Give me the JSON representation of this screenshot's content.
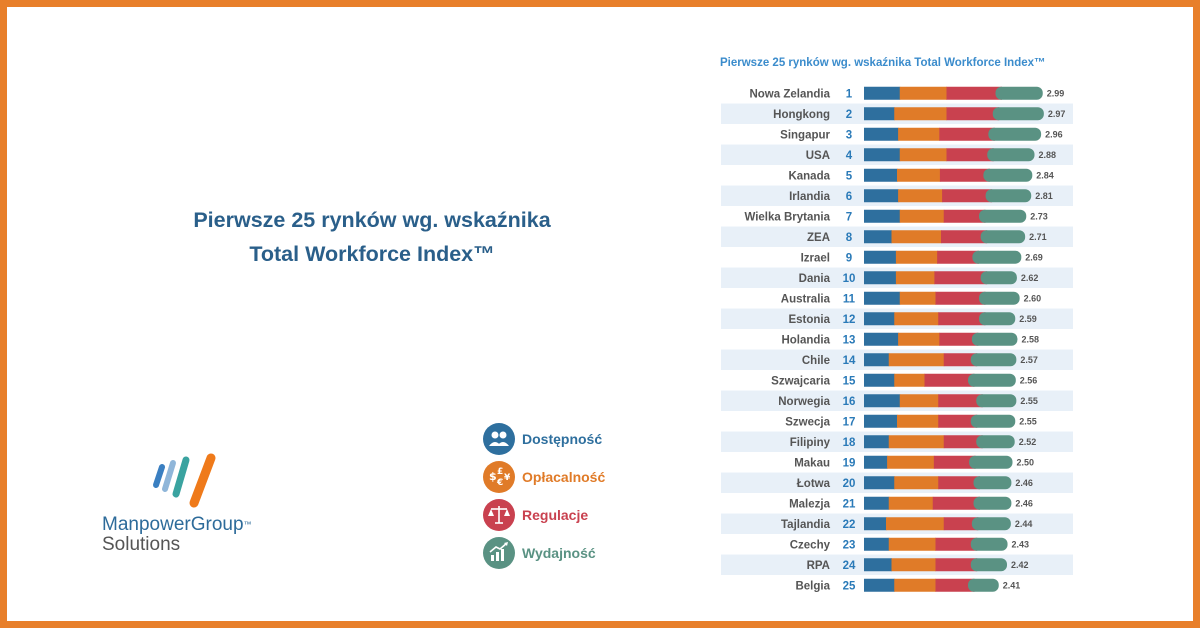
{
  "headline": {
    "line1": "Pierwsze 25 rynków wg. wskaźnika",
    "line2": "Total Workforce Index™"
  },
  "brand": {
    "name": "ManpowerGroup",
    "tm": "™",
    "sub": "Solutions"
  },
  "legend": [
    {
      "label": "Dostępność",
      "color": "#2e6f9e",
      "icon": "people-icon"
    },
    {
      "label": "Opłacalność",
      "color": "#e07b28",
      "icon": "currency-icon"
    },
    {
      "label": "Regulacje",
      "color": "#c9414f",
      "icon": "scales-icon"
    },
    {
      "label": "Wydajność",
      "color": "#5a9283",
      "icon": "growth-chart-icon"
    }
  ],
  "chart_data": {
    "type": "bar",
    "stacked": true,
    "orientation": "horizontal",
    "title": "Pierwsze 25 rynków wg. wskaźnika Total Workforce Index™",
    "series_names": [
      "Dostępność",
      "Opłacalność",
      "Regulacje",
      "Wydajność"
    ],
    "colors": [
      "#2e6f9e",
      "#e07b28",
      "#c9414f",
      "#5a9283"
    ],
    "rows": [
      {
        "country": "Nowa Zelandia",
        "rank": "1",
        "total": "2.99",
        "values": [
          0.65,
          0.85,
          1.0,
          0.75
        ]
      },
      {
        "country": "Hongkong",
        "rank": "2",
        "total": "2.97",
        "values": [
          0.55,
          0.95,
          0.95,
          0.82
        ]
      },
      {
        "country": "Singapur",
        "rank": "3",
        "total": "2.96",
        "values": [
          0.62,
          0.75,
          1.0,
          0.85
        ]
      },
      {
        "country": "USA",
        "rank": "4",
        "total": "2.88",
        "values": [
          0.65,
          0.85,
          0.85,
          0.75
        ]
      },
      {
        "country": "Kanada",
        "rank": "5",
        "total": "2.84",
        "values": [
          0.6,
          0.78,
          0.9,
          0.78
        ]
      },
      {
        "country": "Irlandia",
        "rank": "6",
        "total": "2.81",
        "values": [
          0.62,
          0.8,
          0.9,
          0.72
        ]
      },
      {
        "country": "Wielka Brytania",
        "rank": "7",
        "total": "2.73",
        "values": [
          0.65,
          0.8,
          0.75,
          0.75
        ]
      },
      {
        "country": "ZEA",
        "rank": "8",
        "total": "2.71",
        "values": [
          0.5,
          0.9,
          0.83,
          0.7
        ]
      },
      {
        "country": "Izrael",
        "rank": "9",
        "total": "2.69",
        "values": [
          0.58,
          0.75,
          0.75,
          0.78
        ]
      },
      {
        "country": "Dania",
        "rank": "10",
        "total": "2.62",
        "values": [
          0.58,
          0.7,
          0.95,
          0.55
        ]
      },
      {
        "country": "Australia",
        "rank": "11",
        "total": "2.60",
        "values": [
          0.65,
          0.65,
          0.9,
          0.63
        ]
      },
      {
        "country": "Estonia",
        "rank": "12",
        "total": "2.59",
        "values": [
          0.55,
          0.8,
          0.85,
          0.55
        ]
      },
      {
        "country": "Holandia",
        "rank": "13",
        "total": "2.58",
        "values": [
          0.62,
          0.75,
          0.7,
          0.72
        ]
      },
      {
        "country": "Chile",
        "rank": "14",
        "total": "2.57",
        "values": [
          0.45,
          1.0,
          0.6,
          0.72
        ]
      },
      {
        "country": "Szwajcaria",
        "rank": "15",
        "total": "2.56",
        "values": [
          0.55,
          0.55,
          0.9,
          0.76
        ]
      },
      {
        "country": "Norwegia",
        "rank": "16",
        "total": "2.55",
        "values": [
          0.65,
          0.7,
          0.8,
          0.62
        ]
      },
      {
        "country": "Szwecja",
        "rank": "17",
        "total": "2.55",
        "values": [
          0.6,
          0.75,
          0.7,
          0.7
        ]
      },
      {
        "country": "Filipiny",
        "rank": "18",
        "total": "2.52",
        "values": [
          0.45,
          1.0,
          0.7,
          0.59
        ]
      },
      {
        "country": "Makau",
        "rank": "19",
        "total": "2.50",
        "values": [
          0.42,
          0.85,
          0.75,
          0.68
        ]
      },
      {
        "country": "Łotwa",
        "rank": "20",
        "total": "2.46",
        "values": [
          0.55,
          0.8,
          0.75,
          0.58
        ]
      },
      {
        "country": "Malezja",
        "rank": "21",
        "total": "2.46",
        "values": [
          0.45,
          0.8,
          0.85,
          0.58
        ]
      },
      {
        "country": "Tajlandia",
        "rank": "22",
        "total": "2.44",
        "values": [
          0.4,
          1.05,
          0.62,
          0.6
        ]
      },
      {
        "country": "Czechy",
        "rank": "23",
        "total": "2.43",
        "values": [
          0.45,
          0.85,
          0.75,
          0.56
        ]
      },
      {
        "country": "RPA",
        "rank": "24",
        "total": "2.42",
        "values": [
          0.5,
          0.8,
          0.75,
          0.55
        ]
      },
      {
        "country": "Belgia",
        "rank": "25",
        "total": "2.41",
        "values": [
          0.55,
          0.75,
          0.7,
          0.45
        ]
      }
    ]
  }
}
